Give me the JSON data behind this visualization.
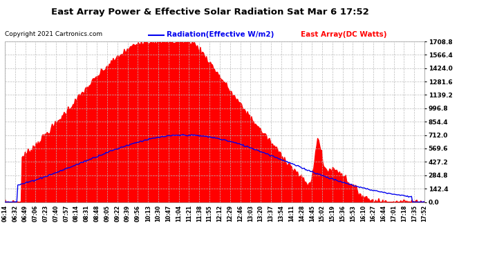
{
  "title": "East Array Power & Effective Solar Radiation Sat Mar 6 17:52",
  "copyright": "Copyright 2021 Cartronics.com",
  "legend_radiation": "Radiation(Effective W/m2)",
  "legend_array": "East Array(DC Watts)",
  "ymax": 1708.8,
  "yticks": [
    0.0,
    142.4,
    284.8,
    427.2,
    569.6,
    712.0,
    854.4,
    996.8,
    1139.2,
    1281.6,
    1424.0,
    1566.4,
    1708.8
  ],
  "plot_bg": "#ffffff",
  "radiation_color": "#0000ee",
  "array_color": "#ff0000",
  "grid_color": "#bbbbbb",
  "title_color": "#000000",
  "time_labels": [
    "06:14",
    "06:32",
    "06:49",
    "07:06",
    "07:23",
    "07:40",
    "07:57",
    "08:14",
    "08:31",
    "08:48",
    "09:05",
    "09:22",
    "09:39",
    "09:56",
    "10:13",
    "10:30",
    "10:47",
    "11:04",
    "11:21",
    "11:38",
    "11:55",
    "12:12",
    "12:29",
    "12:46",
    "13:03",
    "13:20",
    "13:37",
    "13:54",
    "14:11",
    "14:28",
    "14:45",
    "15:02",
    "15:19",
    "15:36",
    "15:53",
    "16:10",
    "16:27",
    "16:44",
    "17:01",
    "17:18",
    "17:35",
    "17:52"
  ]
}
